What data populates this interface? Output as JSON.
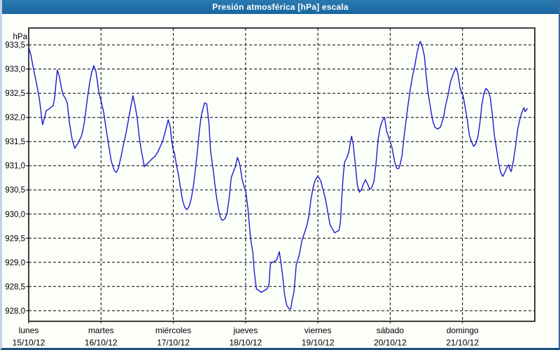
{
  "window": {
    "title": "Presión atmosférica [hPa] escala"
  },
  "colors": {
    "titlebar_blue": "#1e6ca6",
    "line_blue": "#1a1ac8",
    "grid_black": "#000000",
    "background": "#fcfefa",
    "border_light_blue": "#c3d1ee",
    "border_dark_blue": "#1b5180"
  },
  "chart_data": {
    "type": "line",
    "title": "Presión atmosférica [hPa] escala",
    "y_unit_label": "hPa",
    "xlabel": "",
    "ylabel": "hPa",
    "decimal_separator": ",",
    "grid": "dashed",
    "legend": "none",
    "line_color": "#1a1ac8",
    "ylim": [
      927.78,
      933.85
    ],
    "y_ticks": [
      933.5,
      933.0,
      932.5,
      932.0,
      931.5,
      931.0,
      930.5,
      930.0,
      929.5,
      929.0,
      928.5,
      928.0
    ],
    "x_hours_range": [
      0,
      168
    ],
    "x_days": [
      {
        "name": "lunes",
        "date": "15/10/12"
      },
      {
        "name": "martes",
        "date": "16/10/12"
      },
      {
        "name": "miércoles",
        "date": "17/10/12"
      },
      {
        "name": "jueves",
        "date": "18/10/12"
      },
      {
        "name": "viernes",
        "date": "19/10/12"
      },
      {
        "name": "sábado",
        "date": "20/10/12"
      },
      {
        "name": "domingo",
        "date": "21/10/12"
      }
    ],
    "series": [
      {
        "name": "Presión atmosférica",
        "unit": "hPa",
        "x_unit": "hours from lunes 15/10/12 00:00",
        "points": [
          [
            0,
            933.45
          ],
          [
            0.7,
            933.3
          ],
          [
            1.6,
            933.0
          ],
          [
            2.6,
            932.7
          ],
          [
            3.5,
            932.4
          ],
          [
            4.6,
            931.85
          ],
          [
            5.3,
            932.0
          ],
          [
            5.8,
            932.14
          ],
          [
            6.7,
            932.17
          ],
          [
            7.4,
            932.21
          ],
          [
            8.1,
            932.24
          ],
          [
            8.6,
            932.4
          ],
          [
            9.1,
            932.74
          ],
          [
            9.5,
            932.98
          ],
          [
            10.2,
            932.84
          ],
          [
            10.9,
            932.6
          ],
          [
            11.4,
            932.47
          ],
          [
            12.1,
            932.4
          ],
          [
            12.8,
            932.3
          ],
          [
            13.5,
            931.9
          ],
          [
            14.4,
            931.55
          ],
          [
            15.3,
            931.36
          ],
          [
            16.3,
            931.46
          ],
          [
            17.4,
            931.6
          ],
          [
            17.9,
            931.7
          ],
          [
            18.6,
            931.95
          ],
          [
            19.5,
            932.4
          ],
          [
            20.2,
            932.7
          ],
          [
            20.9,
            932.93
          ],
          [
            21.6,
            933.07
          ],
          [
            22.3,
            932.95
          ],
          [
            22.8,
            932.75
          ],
          [
            23.3,
            932.5
          ],
          [
            23.7,
            932.42
          ],
          [
            24.2,
            932.3
          ],
          [
            24.9,
            932.1
          ],
          [
            25.6,
            931.8
          ],
          [
            26.5,
            931.45
          ],
          [
            27.4,
            931.1
          ],
          [
            28.4,
            930.9
          ],
          [
            29.1,
            930.86
          ],
          [
            29.8,
            930.95
          ],
          [
            30.7,
            931.2
          ],
          [
            31.4,
            931.42
          ],
          [
            32.3,
            931.67
          ],
          [
            33,
            931.91
          ],
          [
            33.7,
            932.15
          ],
          [
            34.6,
            932.45
          ],
          [
            35.3,
            932.25
          ],
          [
            36,
            932
          ],
          [
            36.7,
            931.6
          ],
          [
            37.4,
            931.3
          ],
          [
            38.4,
            930.98
          ],
          [
            39.1,
            931.03
          ],
          [
            40,
            931.08
          ],
          [
            40.9,
            931.14
          ],
          [
            41.9,
            931.19
          ],
          [
            42.8,
            931.28
          ],
          [
            43.7,
            931.4
          ],
          [
            44.4,
            931.5
          ],
          [
            45.1,
            931.65
          ],
          [
            45.8,
            931.82
          ],
          [
            46.3,
            931.95
          ],
          [
            47,
            931.8
          ],
          [
            47.4,
            931.55
          ],
          [
            47.9,
            931.35
          ],
          [
            48.4,
            931.25
          ],
          [
            49.1,
            931
          ],
          [
            49.8,
            930.78
          ],
          [
            50.5,
            930.5
          ],
          [
            51.1,
            930.28
          ],
          [
            51.8,
            930.14
          ],
          [
            52.5,
            930.09
          ],
          [
            53.2,
            930.15
          ],
          [
            53.9,
            930.3
          ],
          [
            54.6,
            930.55
          ],
          [
            55.3,
            930.9
          ],
          [
            56,
            931.3
          ],
          [
            56.7,
            931.75
          ],
          [
            57.2,
            932
          ],
          [
            57.7,
            932.15
          ],
          [
            58.4,
            932.3
          ],
          [
            59.1,
            932.28
          ],
          [
            59.8,
            931.9
          ],
          [
            60.4,
            931.3
          ],
          [
            61.4,
            930.85
          ],
          [
            62.1,
            930.45
          ],
          [
            62.8,
            930.17
          ],
          [
            63.5,
            929.95
          ],
          [
            64.2,
            929.87
          ],
          [
            65.1,
            929.9
          ],
          [
            65.8,
            930
          ],
          [
            66.7,
            930.4
          ],
          [
            67.2,
            930.75
          ],
          [
            67.9,
            930.87
          ],
          [
            68.6,
            930.98
          ],
          [
            69.3,
            931.17
          ],
          [
            69.7,
            931.1
          ],
          [
            70.2,
            930.98
          ],
          [
            70.9,
            930.7
          ],
          [
            71.6,
            930.55
          ],
          [
            72.1,
            930.45
          ],
          [
            72.8,
            930.1
          ],
          [
            73.5,
            929.6
          ],
          [
            73.9,
            929.4
          ],
          [
            74.4,
            929.2
          ],
          [
            74.9,
            928.8
          ],
          [
            75.6,
            928.45
          ],
          [
            76.3,
            928.42
          ],
          [
            77.2,
            928.38
          ],
          [
            78.1,
            928.41
          ],
          [
            79.1,
            928.45
          ],
          [
            79.8,
            928.55
          ],
          [
            80.2,
            928.95
          ],
          [
            80.7,
            929
          ],
          [
            81.4,
            929.01
          ],
          [
            82.3,
            929.05
          ],
          [
            83.2,
            929.22
          ],
          [
            83.7,
            929
          ],
          [
            84.2,
            928.77
          ],
          [
            84.9,
            928.35
          ],
          [
            85.6,
            928.12
          ],
          [
            86.5,
            928.03
          ],
          [
            87,
            928.04
          ],
          [
            87.4,
            928.2
          ],
          [
            88.1,
            928.4
          ],
          [
            88.8,
            928.95
          ],
          [
            89.8,
            929.15
          ],
          [
            90.7,
            929.45
          ],
          [
            91.6,
            929.62
          ],
          [
            92.3,
            929.75
          ],
          [
            93,
            929.95
          ],
          [
            93.7,
            930.3
          ],
          [
            94.4,
            930.55
          ],
          [
            95.1,
            930.7
          ],
          [
            95.8,
            930.77
          ],
          [
            96.3,
            930.76
          ],
          [
            97,
            930.68
          ],
          [
            97.7,
            930.5
          ],
          [
            98.6,
            930.29
          ],
          [
            99.3,
            930.03
          ],
          [
            100,
            929.78
          ],
          [
            100.9,
            929.68
          ],
          [
            101.6,
            929.61
          ],
          [
            102.3,
            929.64
          ],
          [
            103,
            929.66
          ],
          [
            103.5,
            929.85
          ],
          [
            103.9,
            930.3
          ],
          [
            104.4,
            930.8
          ],
          [
            104.9,
            931.08
          ],
          [
            105.6,
            931.16
          ],
          [
            106.3,
            931.3
          ],
          [
            106.7,
            931.45
          ],
          [
            107.2,
            931.61
          ],
          [
            107.7,
            931.45
          ],
          [
            108.4,
            931.05
          ],
          [
            109.1,
            930.6
          ],
          [
            109.8,
            930.45
          ],
          [
            110.4,
            930.5
          ],
          [
            111.1,
            930.62
          ],
          [
            111.8,
            930.71
          ],
          [
            112.5,
            930.62
          ],
          [
            113.2,
            930.51
          ],
          [
            113.9,
            930.55
          ],
          [
            114.6,
            930.67
          ],
          [
            115.3,
            931.05
          ],
          [
            116,
            931.55
          ],
          [
            116.7,
            931.8
          ],
          [
            117.4,
            931.93
          ],
          [
            118.1,
            932
          ],
          [
            118.8,
            931.72
          ],
          [
            119.5,
            931.58
          ],
          [
            120,
            931.5
          ],
          [
            120.7,
            931.35
          ],
          [
            121.4,
            931.1
          ],
          [
            122.1,
            930.95
          ],
          [
            122.8,
            930.94
          ],
          [
            123.2,
            931
          ],
          [
            123.9,
            931.2
          ],
          [
            124.6,
            931.6
          ],
          [
            125.3,
            931.95
          ],
          [
            126,
            932.3
          ],
          [
            126.7,
            932.6
          ],
          [
            127.4,
            932.85
          ],
          [
            128.1,
            933.05
          ],
          [
            128.8,
            933.3
          ],
          [
            129.5,
            933.5
          ],
          [
            130,
            933.57
          ],
          [
            130.7,
            933.45
          ],
          [
            131.4,
            933.25
          ],
          [
            131.8,
            932.95
          ],
          [
            132.5,
            932.54
          ],
          [
            133.5,
            932.15
          ],
          [
            134.2,
            931.91
          ],
          [
            134.9,
            931.79
          ],
          [
            135.8,
            931.76
          ],
          [
            136.7,
            931.8
          ],
          [
            137.7,
            932
          ],
          [
            138.4,
            932.25
          ],
          [
            139.3,
            932.49
          ],
          [
            140,
            932.73
          ],
          [
            140.9,
            932.9
          ],
          [
            141.8,
            933.03
          ],
          [
            142.5,
            932.9
          ],
          [
            143.2,
            932.6
          ],
          [
            144.2,
            932.45
          ],
          [
            144.9,
            932.2
          ],
          [
            145.6,
            931.95
          ],
          [
            146.3,
            931.62
          ],
          [
            147,
            931.5
          ],
          [
            147.7,
            931.4
          ],
          [
            148.4,
            931.45
          ],
          [
            149.1,
            931.6
          ],
          [
            149.8,
            931.9
          ],
          [
            150.4,
            932.25
          ],
          [
            151.1,
            932.5
          ],
          [
            151.8,
            932.6
          ],
          [
            152.5,
            932.55
          ],
          [
            153.2,
            932.42
          ],
          [
            153.9,
            932.06
          ],
          [
            154.6,
            931.62
          ],
          [
            155.3,
            931.35
          ],
          [
            156,
            931.05
          ],
          [
            156.7,
            930.85
          ],
          [
            157.4,
            930.78
          ],
          [
            158.1,
            930.87
          ],
          [
            158.8,
            930.97
          ],
          [
            159.3,
            931.02
          ],
          [
            159.7,
            930.93
          ],
          [
            160.2,
            930.88
          ],
          [
            160.9,
            931.1
          ],
          [
            161.6,
            931.4
          ],
          [
            162.3,
            931.75
          ],
          [
            163,
            931.95
          ],
          [
            163.7,
            932.1
          ],
          [
            164.4,
            932.2
          ],
          [
            164.8,
            932.12
          ],
          [
            165.5,
            932.18
          ]
        ]
      }
    ]
  }
}
